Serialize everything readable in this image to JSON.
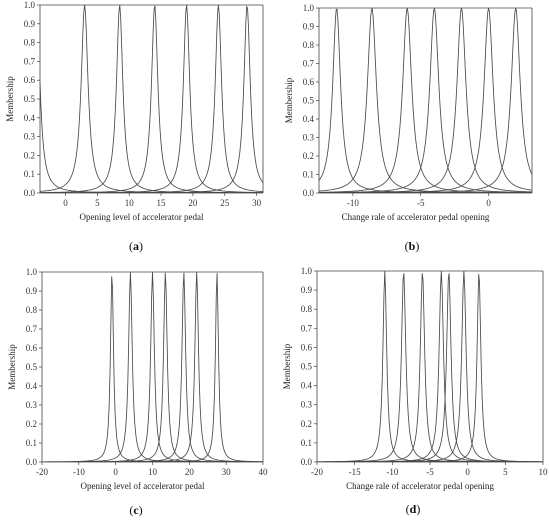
{
  "chart_data": [
    {
      "type": "line",
      "panel_label": "a",
      "xlabel": "Opening level of accelerator pedal",
      "ylabel": "Membership",
      "xlim": [
        -4,
        31
      ],
      "ylim": [
        0,
        1
      ],
      "xticks": [
        0,
        5,
        10,
        15,
        20,
        25,
        30
      ],
      "yticks": [
        0.0,
        0.1,
        0.2,
        0.3,
        0.4,
        0.5,
        0.6,
        0.7,
        0.8,
        0.9,
        1.0
      ],
      "grid": false,
      "series": [
        {
          "center": -4.5,
          "width": 0.6
        },
        {
          "center": 3.0,
          "width": 0.65
        },
        {
          "center": 8.5,
          "width": 0.6
        },
        {
          "center": 14.0,
          "width": 0.6
        },
        {
          "center": 19.0,
          "width": 0.6
        },
        {
          "center": 24.0,
          "width": 0.6
        },
        {
          "center": 28.5,
          "width": 0.6
        }
      ]
    },
    {
      "type": "line",
      "panel_label": "b",
      "xlabel": "Change rale of accelerator pedal opening",
      "ylabel": "Membership",
      "xlim": [
        -12.5,
        3.2
      ],
      "ylim": [
        0,
        1
      ],
      "xticks": [
        -10,
        -5,
        0
      ],
      "yticks": [
        0.0,
        0.1,
        0.2,
        0.3,
        0.4,
        0.5,
        0.6,
        0.7,
        0.8,
        0.9,
        1.0
      ],
      "grid": false,
      "series": [
        {
          "center": -11.2,
          "width": 0.35
        },
        {
          "center": -8.6,
          "width": 0.4
        },
        {
          "center": -6.0,
          "width": 0.4
        },
        {
          "center": -4.0,
          "width": 0.4
        },
        {
          "center": -2.0,
          "width": 0.4
        },
        {
          "center": 0.0,
          "width": 0.4
        },
        {
          "center": 2.0,
          "width": 0.4
        }
      ]
    },
    {
      "type": "line",
      "panel_label": "c",
      "xlabel": "Opening level of accelerator pedal",
      "ylabel": "Membership",
      "xlim": [
        -20,
        40
      ],
      "ylim": [
        0,
        1
      ],
      "xticks": [
        -20,
        -10,
        0,
        10,
        20,
        30,
        40
      ],
      "yticks": [
        0.0,
        0.1,
        0.2,
        0.3,
        0.4,
        0.5,
        0.6,
        0.7,
        0.8,
        0.9,
        1.0
      ],
      "grid": false,
      "series": [
        {
          "center": -1.0,
          "width": 0.5
        },
        {
          "center": 4.0,
          "width": 0.6
        },
        {
          "center": 10.0,
          "width": 0.6
        },
        {
          "center": 13.5,
          "width": 0.6
        },
        {
          "center": 18.5,
          "width": 0.6
        },
        {
          "center": 22.0,
          "width": 0.6
        },
        {
          "center": 27.5,
          "width": 0.5
        }
      ]
    },
    {
      "type": "line",
      "panel_label": "d",
      "xlabel": "Change rale of accelerator pedal opening",
      "ylabel": "Membership",
      "xlim": [
        -20,
        10
      ],
      "ylim": [
        0,
        1
      ],
      "xticks": [
        -20,
        -15,
        -10,
        -5,
        0,
        5,
        10
      ],
      "yticks": [
        0.0,
        0.1,
        0.2,
        0.3,
        0.4,
        0.5,
        0.6,
        0.7,
        0.8,
        0.9,
        1.0
      ],
      "grid": false,
      "series": [
        {
          "center": -11.0,
          "width": 0.3
        },
        {
          "center": -8.5,
          "width": 0.35
        },
        {
          "center": -6.0,
          "width": 0.35
        },
        {
          "center": -3.5,
          "width": 0.35
        },
        {
          "center": -2.5,
          "width": 0.35
        },
        {
          "center": -0.5,
          "width": 0.35
        },
        {
          "center": 1.5,
          "width": 0.3
        }
      ]
    }
  ]
}
